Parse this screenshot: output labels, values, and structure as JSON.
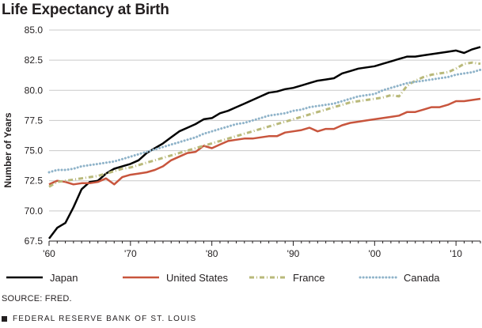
{
  "chart_data": {
    "type": "line",
    "title": "Life Expectancy at Birth",
    "ylabel": "Number of Years",
    "xlabel": "",
    "xlim": [
      1960,
      2013
    ],
    "ylim": [
      67.5,
      85.0
    ],
    "x_ticks": [
      {
        "value": 1960,
        "label": "'60"
      },
      {
        "value": 1970,
        "label": "'70"
      },
      {
        "value": 1980,
        "label": "'80"
      },
      {
        "value": 1990,
        "label": "'90"
      },
      {
        "value": 2000,
        "label": "'00"
      },
      {
        "value": 2010,
        "label": "'10"
      }
    ],
    "y_ticks": [
      {
        "value": 67.5,
        "label": "67.5"
      },
      {
        "value": 70.0,
        "label": "70.0"
      },
      {
        "value": 72.5,
        "label": "72.5"
      },
      {
        "value": 75.0,
        "label": "75.0"
      },
      {
        "value": 77.5,
        "label": "77.5"
      },
      {
        "value": 80.0,
        "label": "80.0"
      },
      {
        "value": 82.5,
        "label": "82.5"
      },
      {
        "value": 85.0,
        "label": "85.0"
      }
    ],
    "grid": "horizontal",
    "legend_position": "bottom",
    "x": [
      1960,
      1961,
      1962,
      1963,
      1964,
      1965,
      1966,
      1967,
      1968,
      1969,
      1970,
      1971,
      1972,
      1973,
      1974,
      1975,
      1976,
      1977,
      1978,
      1979,
      1980,
      1981,
      1982,
      1983,
      1984,
      1985,
      1986,
      1987,
      1988,
      1989,
      1990,
      1991,
      1992,
      1993,
      1994,
      1995,
      1996,
      1997,
      1998,
      1999,
      2000,
      2001,
      2002,
      2003,
      2004,
      2005,
      2006,
      2007,
      2008,
      2009,
      2010,
      2011,
      2012,
      2013
    ],
    "series": [
      {
        "name": "Japan",
        "color": "#000000",
        "style": "solid",
        "values": [
          67.7,
          68.6,
          69.0,
          70.3,
          71.8,
          72.4,
          72.5,
          73.1,
          73.5,
          73.7,
          73.9,
          74.2,
          74.8,
          75.2,
          75.6,
          76.1,
          76.6,
          76.9,
          77.2,
          77.6,
          77.7,
          78.1,
          78.3,
          78.6,
          78.9,
          79.2,
          79.5,
          79.8,
          79.9,
          80.1,
          80.2,
          80.4,
          80.6,
          80.8,
          80.9,
          81.0,
          81.4,
          81.6,
          81.8,
          81.9,
          82.0,
          82.2,
          82.4,
          82.6,
          82.8,
          82.8,
          82.9,
          83.0,
          83.1,
          83.2,
          83.3,
          83.1,
          83.4,
          83.6
        ]
      },
      {
        "name": "United States",
        "color": "#c8553d",
        "style": "solid",
        "values": [
          72.2,
          72.5,
          72.4,
          72.2,
          72.3,
          72.3,
          72.4,
          72.7,
          72.2,
          72.8,
          73.0,
          73.1,
          73.2,
          73.4,
          73.7,
          74.2,
          74.5,
          74.8,
          74.9,
          75.4,
          75.2,
          75.5,
          75.8,
          75.9,
          76.0,
          76.0,
          76.1,
          76.2,
          76.2,
          76.5,
          76.6,
          76.7,
          76.9,
          76.6,
          76.8,
          76.8,
          77.1,
          77.3,
          77.4,
          77.5,
          77.6,
          77.7,
          77.8,
          77.9,
          78.2,
          78.2,
          78.4,
          78.6,
          78.6,
          78.8,
          79.1,
          79.1,
          79.2,
          79.3
        ]
      },
      {
        "name": "France",
        "color": "#b9b97a",
        "style": "dashdot",
        "values": [
          72.0,
          72.4,
          72.5,
          72.6,
          72.7,
          72.8,
          72.9,
          73.1,
          73.3,
          73.5,
          73.6,
          73.8,
          74.0,
          74.2,
          74.4,
          74.6,
          74.8,
          75.0,
          75.2,
          75.4,
          75.6,
          75.8,
          76.0,
          76.2,
          76.4,
          76.6,
          76.8,
          77.0,
          77.2,
          77.4,
          77.6,
          77.8,
          78.0,
          78.2,
          78.4,
          78.6,
          78.8,
          79.0,
          79.1,
          79.2,
          79.3,
          79.4,
          79.6,
          79.5,
          80.4,
          80.8,
          81.1,
          81.3,
          81.4,
          81.5,
          81.8,
          82.2,
          82.3,
          82.2
        ]
      },
      {
        "name": "Canada",
        "color": "#8fb3c9",
        "style": "dotted",
        "values": [
          73.2,
          73.4,
          73.4,
          73.5,
          73.7,
          73.8,
          73.9,
          74.0,
          74.1,
          74.3,
          74.5,
          74.7,
          74.9,
          75.1,
          75.3,
          75.5,
          75.7,
          75.9,
          76.1,
          76.4,
          76.6,
          76.8,
          77.0,
          77.2,
          77.3,
          77.5,
          77.7,
          77.9,
          78.0,
          78.1,
          78.3,
          78.4,
          78.6,
          78.7,
          78.8,
          78.9,
          79.1,
          79.3,
          79.5,
          79.6,
          79.7,
          80.0,
          80.2,
          80.4,
          80.6,
          80.7,
          80.8,
          80.9,
          81.0,
          81.1,
          81.3,
          81.4,
          81.5,
          81.7
        ]
      }
    ]
  },
  "source": "SOURCE: FRED.",
  "footer": "FEDERAL RESERVE BANK OF ST. LOUIS"
}
